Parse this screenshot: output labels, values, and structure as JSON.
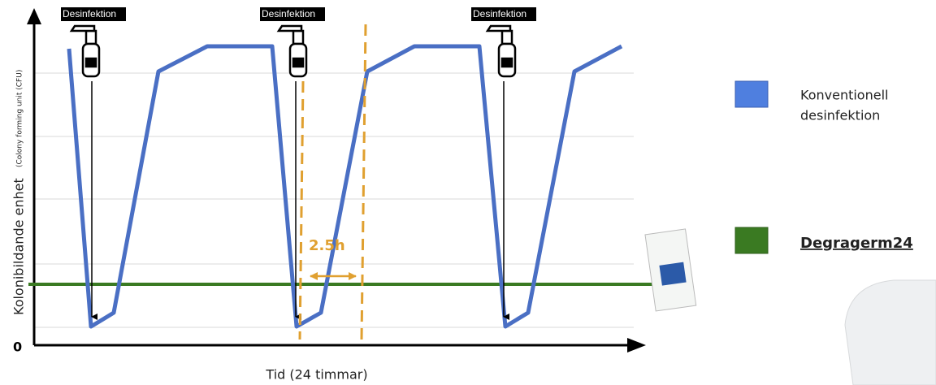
{
  "markers": [
    "Desinfektion",
    "Desinfektion",
    "Desinfektion"
  ],
  "y_axis": {
    "label": "Kolonibildande enhet",
    "sublabel": "(Colony forming unit (CFU)",
    "origin": "0"
  },
  "x_axis": {
    "label": "Tid (24 timmar)"
  },
  "interval": "2.5h",
  "legend": [
    {
      "line1": "Konventionell",
      "line2": "desinfektion"
    },
    {
      "name": "Degragerm24"
    }
  ]
}
